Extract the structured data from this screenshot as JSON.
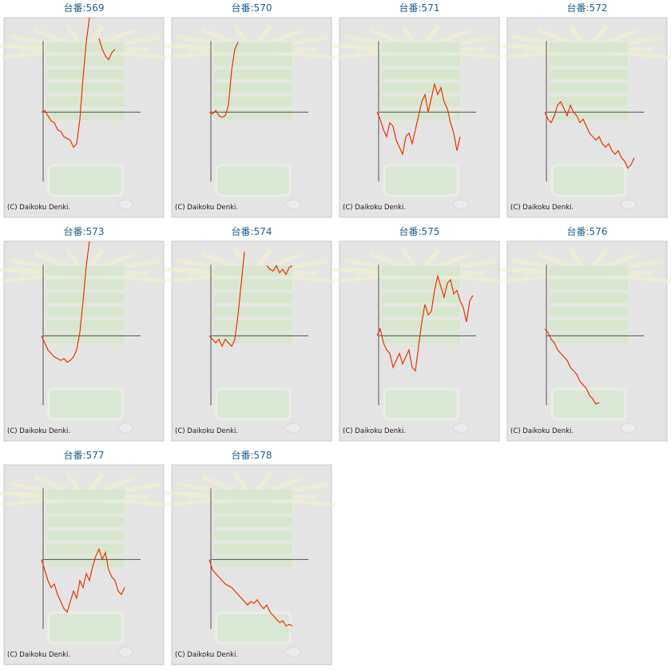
{
  "chart_data": [
    {
      "type": "line",
      "title": "台番:569",
      "credit": "(C) Daikoku Denki.",
      "color": "#ee3300",
      "ylim": [
        -3000,
        2700
      ],
      "values": [
        0,
        50,
        -100,
        -250,
        -300,
        -500,
        -550,
        -700,
        -750,
        -800,
        -1000,
        -900,
        -200,
        1000,
        2000,
        2700,
        null,
        null,
        2100,
        1800,
        1600,
        1500,
        1700,
        1800
      ]
    },
    {
      "type": "line",
      "title": "台番:570",
      "credit": "(C) Daikoku Denki.",
      "color": "#ee3300",
      "ylim": [
        -3000,
        2700
      ],
      "values": [
        0,
        -50,
        50,
        -100,
        -150,
        -100,
        200,
        1200,
        1800,
        2000
      ]
    },
    {
      "type": "line",
      "title": "台番:571",
      "credit": "(C) Daikoku Denki.",
      "color": "#ee3300",
      "ylim": [
        -3000,
        2700
      ],
      "values": [
        0,
        -200,
        -500,
        -700,
        -300,
        -400,
        -800,
        -1000,
        -1200,
        -700,
        -600,
        -900,
        -500,
        -100,
        300,
        500,
        0,
        400,
        800,
        500,
        700,
        300,
        100,
        -300,
        -600,
        -1100,
        -700
      ]
    },
    {
      "type": "line",
      "title": "台番:572",
      "credit": "(C) Daikoku Denki.",
      "color": "#ee3300",
      "ylim": [
        -3000,
        2700
      ],
      "values": [
        0,
        -200,
        -300,
        -100,
        200,
        300,
        100,
        -100,
        200,
        0,
        -100,
        -300,
        -200,
        -400,
        -600,
        -700,
        -800,
        -700,
        -900,
        -1000,
        -900,
        -1100,
        -1200,
        -1100,
        -1300,
        -1400,
        -1600,
        -1500,
        -1300
      ]
    },
    {
      "type": "line",
      "title": "台番:573",
      "credit": "(C) Daikoku Denki.",
      "color": "#ee3300",
      "ylim": [
        -3000,
        2700
      ],
      "values": [
        0,
        -200,
        -400,
        -500,
        -600,
        -650,
        -700,
        -650,
        -750,
        -700,
        -600,
        -400,
        100,
        1000,
        2000,
        2700
      ]
    },
    {
      "type": "line",
      "title": "台番:574",
      "credit": "(C) Daikoku Denki.",
      "color": "#ee3300",
      "ylim": [
        -3000,
        2700
      ],
      "values": [
        0,
        -100,
        -200,
        -100,
        -300,
        -100,
        -200,
        -300,
        -100,
        600,
        1500,
        2400,
        null,
        null,
        null,
        null,
        null,
        null,
        2000,
        1900,
        1850,
        2000,
        1800,
        1900,
        1750,
        1950,
        2000
      ]
    },
    {
      "type": "line",
      "title": "台番:575",
      "credit": "(C) Daikoku Denki.",
      "color": "#ee3300",
      "ylim": [
        -3000,
        2700
      ],
      "values": [
        0,
        200,
        -200,
        -400,
        -500,
        -900,
        -700,
        -500,
        -800,
        -600,
        -400,
        -900,
        -1000,
        -300,
        400,
        900,
        600,
        700,
        1300,
        1700,
        1400,
        1100,
        1500,
        1600,
        1200,
        1300,
        1000,
        800,
        400,
        1000,
        1150
      ]
    },
    {
      "type": "line",
      "title": "台番:576",
      "credit": "(C) Daikoku Denki.",
      "color": "#ee3300",
      "ylim": [
        -3000,
        2700
      ],
      "values": [
        200,
        100,
        -100,
        -200,
        -400,
        -500,
        -600,
        -700,
        -900,
        -1000,
        -1100,
        -1300,
        -1400,
        -1500,
        -1700,
        -1800,
        -1950,
        -1900
      ]
    },
    {
      "type": "line",
      "title": "台番:577",
      "credit": "(C) Daikoku Denki.",
      "color": "#ee3300",
      "ylim": [
        -3000,
        2700
      ],
      "values": [
        0,
        -300,
        -600,
        -800,
        -700,
        -1000,
        -1200,
        -1400,
        -1500,
        -1200,
        -900,
        -1100,
        -600,
        -800,
        -400,
        -600,
        -200,
        100,
        300,
        0,
        200,
        -300,
        -500,
        -600,
        -900,
        -1000,
        -800
      ]
    },
    {
      "type": "line",
      "title": "台番:578",
      "credit": "(C) Daikoku Denki.",
      "color": "#ee3300",
      "ylim": [
        -3000,
        2700
      ],
      "values": [
        0,
        -300,
        -400,
        -500,
        -600,
        -700,
        -750,
        -800,
        -900,
        -1000,
        -1100,
        -1200,
        -1300,
        -1200,
        -1250,
        -1150,
        -1300,
        -1400,
        -1300,
        -1500,
        -1600,
        -1700,
        -1800,
        -1750,
        -1900,
        -1850,
        -1900
      ]
    }
  ]
}
